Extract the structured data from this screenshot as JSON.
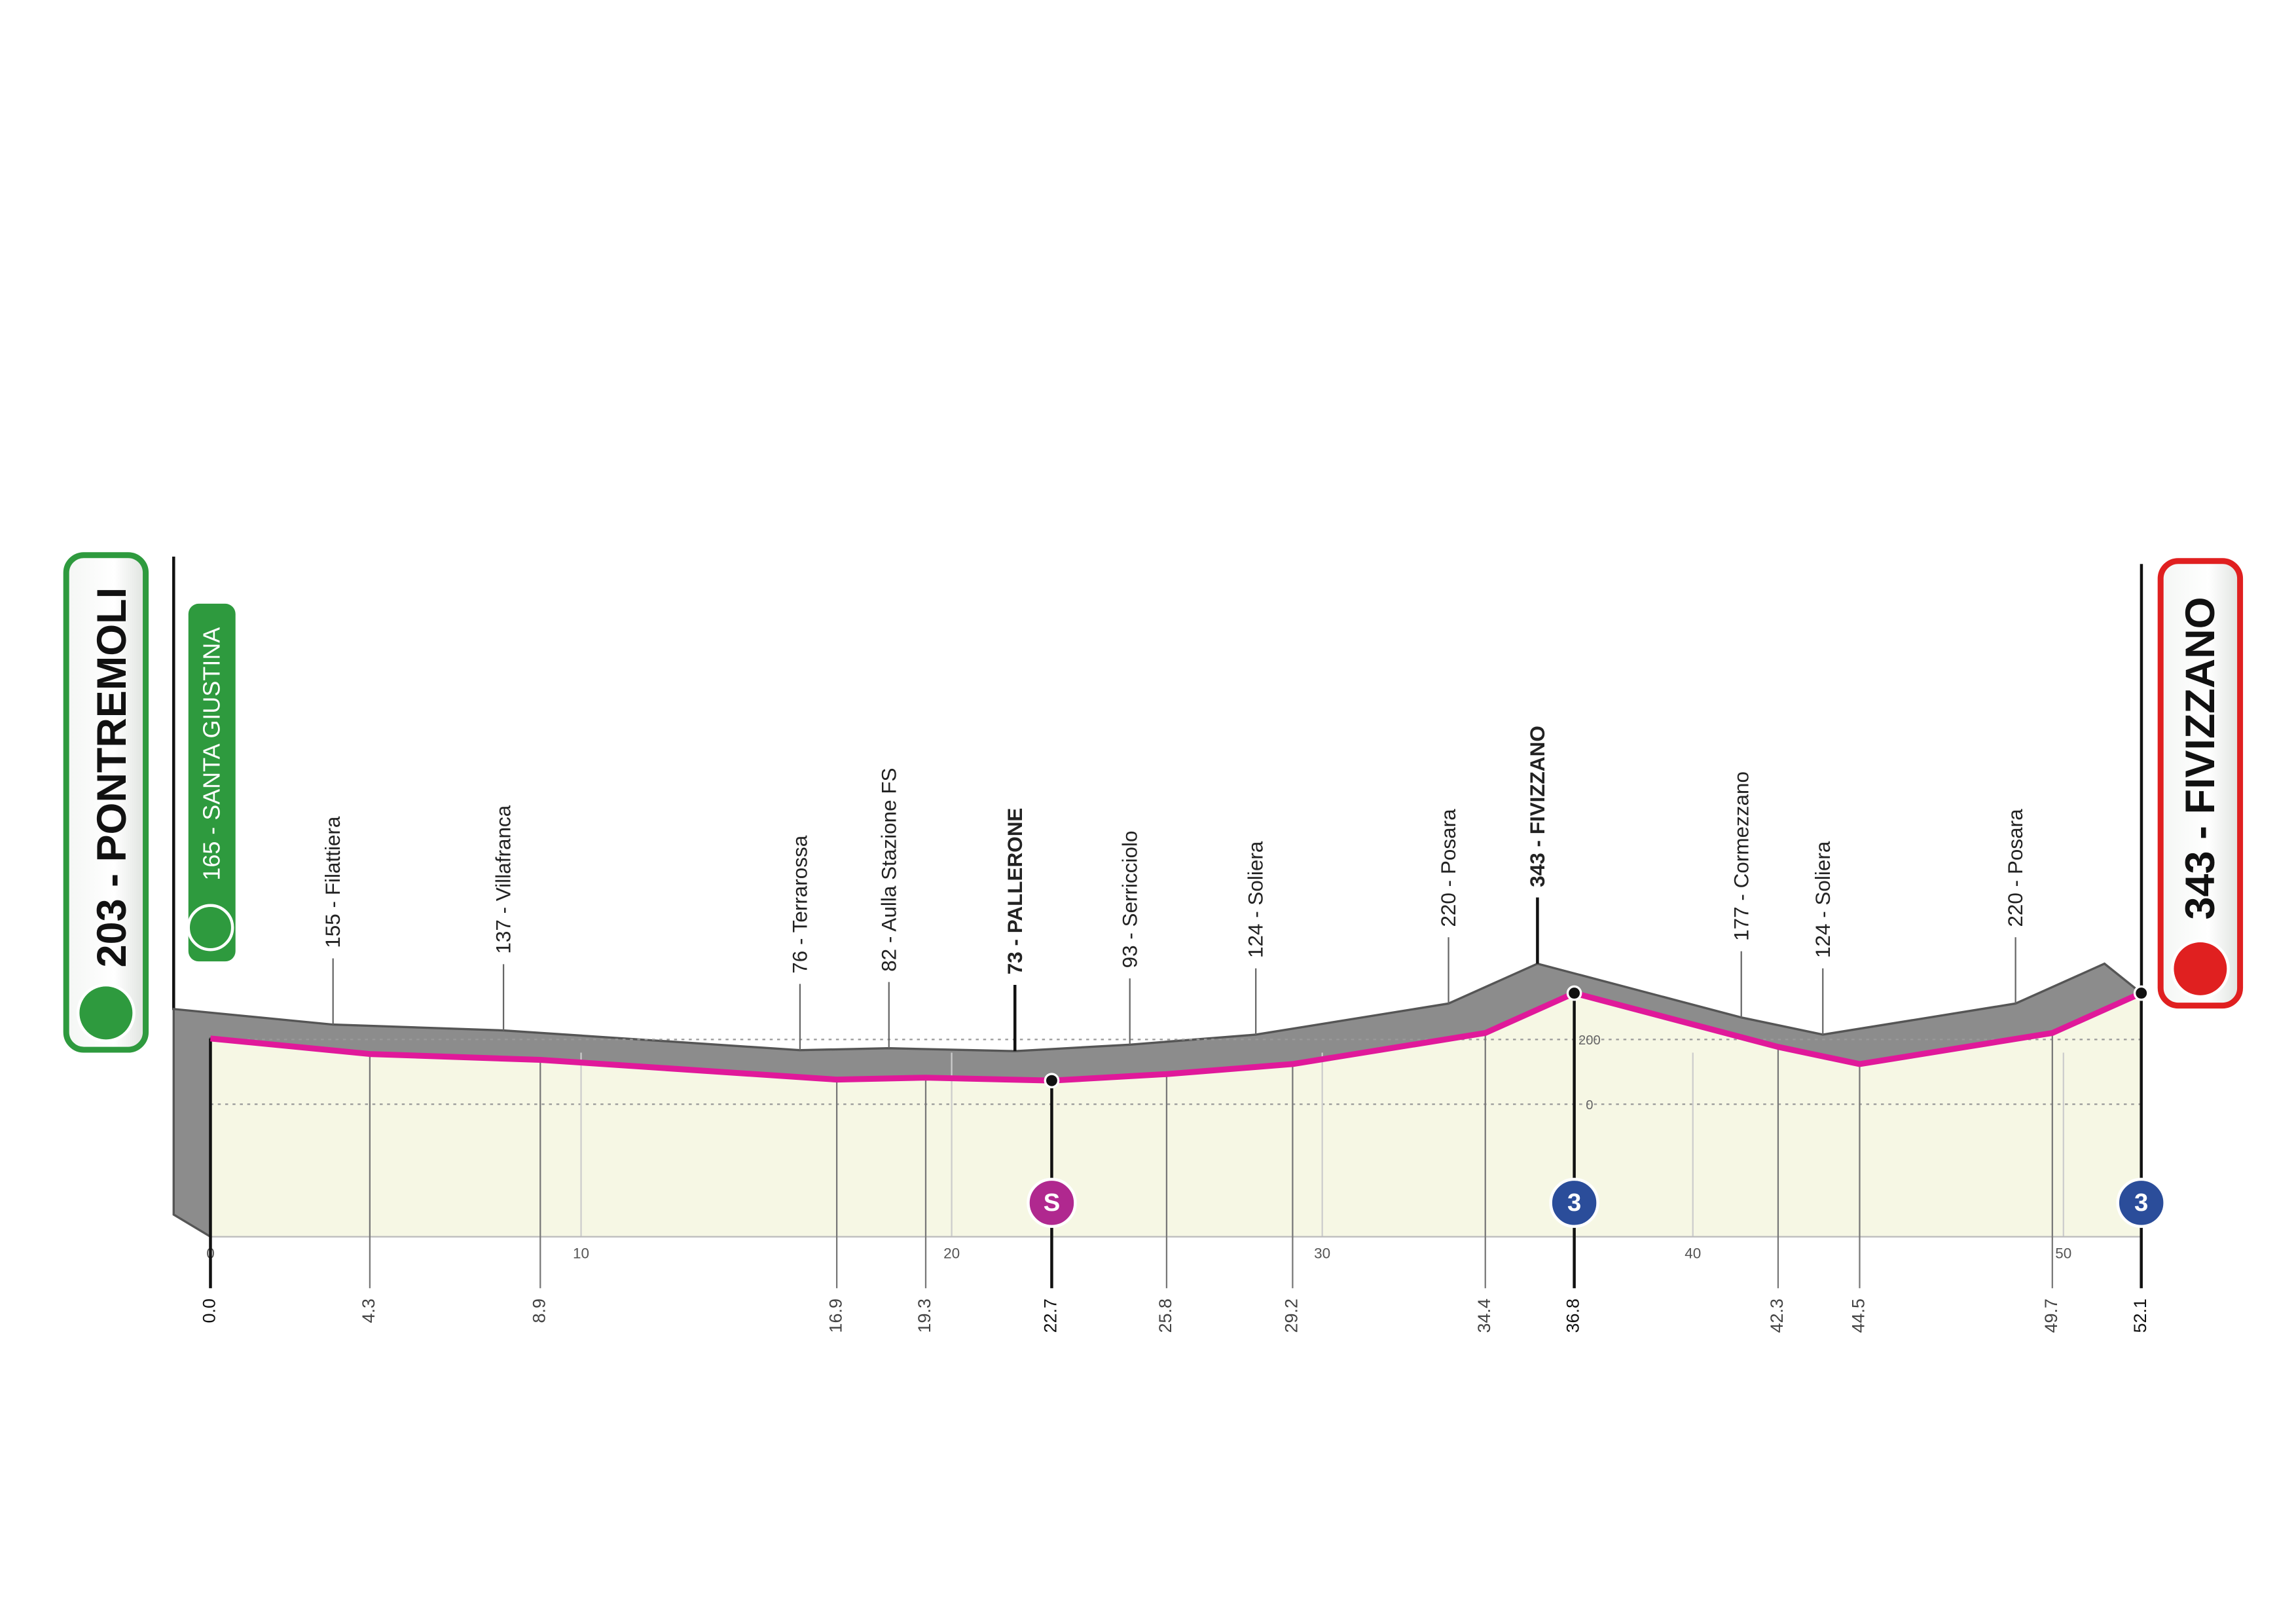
{
  "start": {
    "label": "203 - PONTREMOLI",
    "elevation": 203,
    "km": "0.0"
  },
  "start_sub": {
    "label": "165 - SANTA GIUSTINA"
  },
  "finish": {
    "label": "343 - FIVIZZANO",
    "elevation": 343,
    "km": "52.1"
  },
  "waypoints": [
    {
      "km": "4.3",
      "label": "155 - Filattiera",
      "elevation": 155
    },
    {
      "km": "8.9",
      "label": "137 - Villafranca",
      "elevation": 137
    },
    {
      "km": "16.9",
      "label": "76 - Terrarossa",
      "elevation": 76
    },
    {
      "km": "19.3",
      "label": "82 - Aulla Stazione FS",
      "elevation": 82
    },
    {
      "km": "22.7",
      "label": "73 - PALLERONE",
      "elevation": 73,
      "bold": true
    },
    {
      "km": "25.8",
      "label": "93 - Serricciolo",
      "elevation": 93
    },
    {
      "km": "29.2",
      "label": "124 - Soliera",
      "elevation": 124
    },
    {
      "km": "34.4",
      "label": "220 - Posara",
      "elevation": 220
    },
    {
      "km": "36.8",
      "label": "343 - FIVIZZANO",
      "elevation": 343,
      "bold": true
    },
    {
      "km": "42.3",
      "label": "177 - Cormezzano",
      "elevation": 177
    },
    {
      "km": "44.5",
      "label": "124 - Soliera",
      "elevation": 124
    },
    {
      "km": "49.7",
      "label": "220 - Posara",
      "elevation": 220
    }
  ],
  "markers": [
    {
      "km": "22.7",
      "label": "S",
      "color": "#b0288f"
    },
    {
      "km": "36.8",
      "label": "3",
      "color": "#2b4d9a"
    },
    {
      "km": "52.1",
      "label": "3",
      "color": "#2b4d9a"
    }
  ],
  "distance_ticks": [
    0,
    10,
    20,
    30,
    40,
    50
  ],
  "elevation_ticks": [
    200,
    0
  ]
}
